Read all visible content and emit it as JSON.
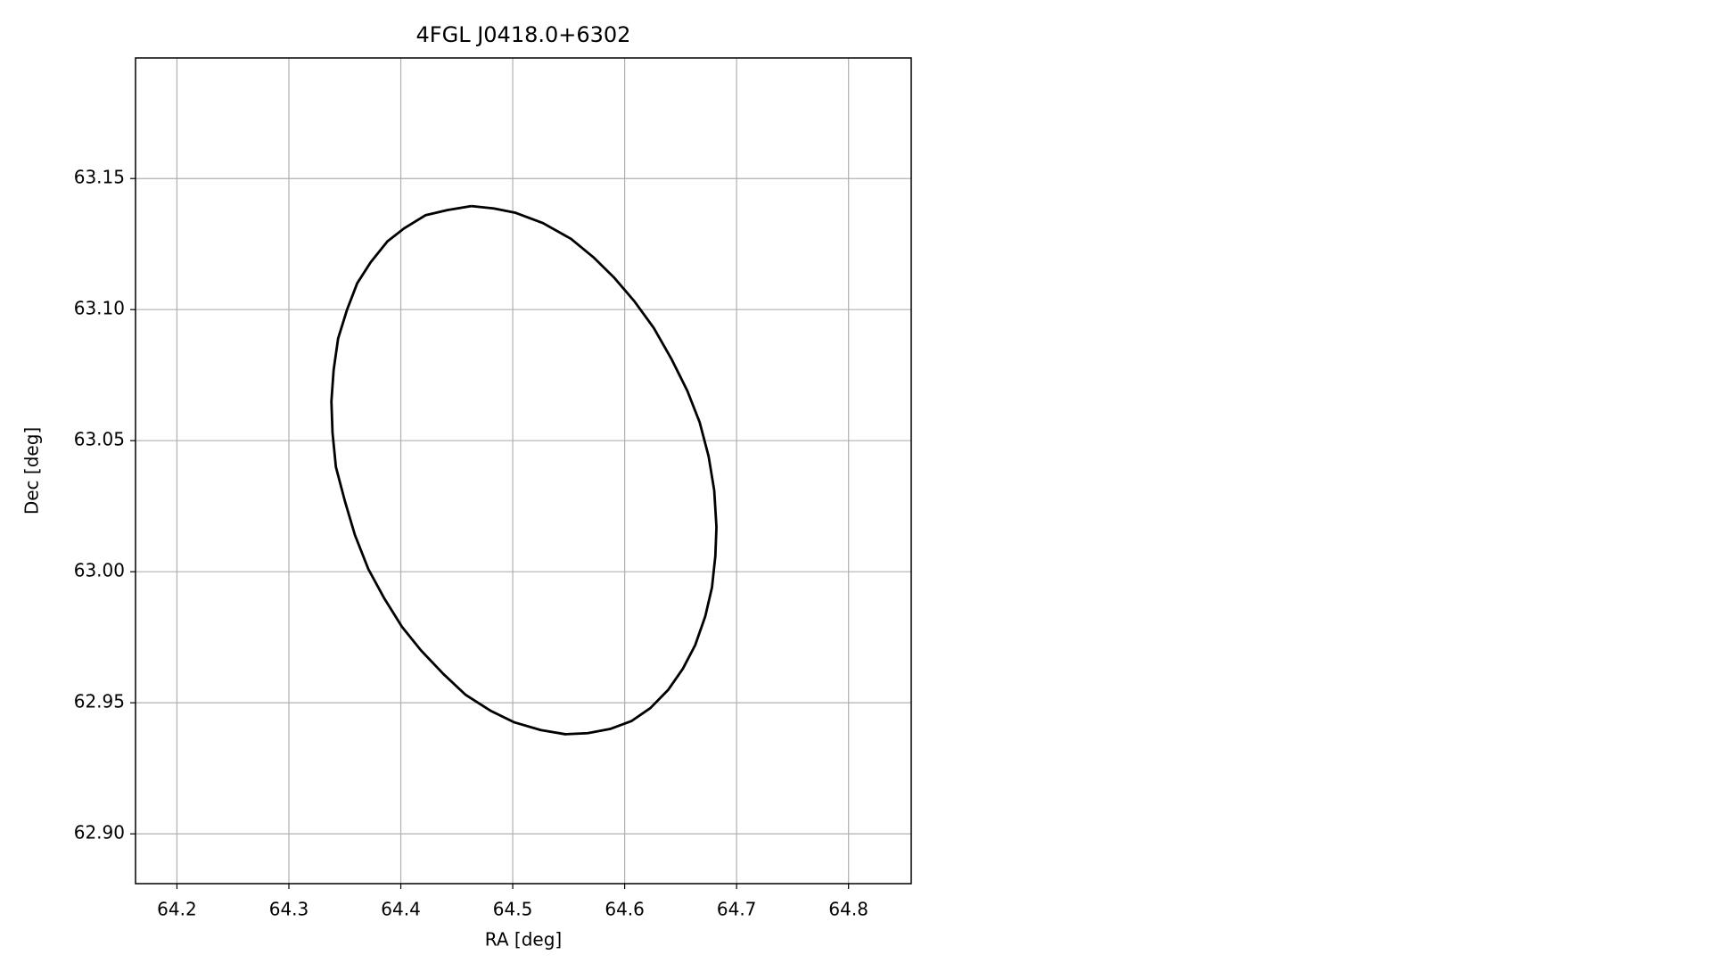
{
  "chart_data": {
    "type": "line",
    "title": "4FGL J0418.0+6302",
    "x_label": "RA [deg]",
    "y_label": "Dec [deg]",
    "x": [
      64.463,
      64.483,
      64.502,
      64.527,
      64.552,
      64.572,
      64.591,
      64.609,
      64.626,
      64.642,
      64.656,
      64.667,
      64.675,
      64.68,
      64.682,
      64.681,
      64.678,
      64.672,
      64.663,
      64.652,
      64.639,
      64.623,
      64.606,
      64.587,
      64.567,
      64.547,
      64.525,
      64.501,
      64.48,
      64.458,
      64.438,
      64.418,
      64.401,
      64.385,
      64.371,
      64.359,
      64.35,
      64.342,
      64.339,
      64.338,
      64.34,
      64.344,
      64.352,
      64.361,
      64.373,
      64.388,
      64.403,
      64.422,
      64.442,
      64.463
    ],
    "series": [
      {
        "color": "#000000",
        "values": [
          63.1395,
          63.1386,
          63.137,
          63.133,
          63.127,
          63.12,
          63.112,
          63.103,
          63.093,
          63.081,
          63.069,
          63.057,
          63.044,
          63.031,
          63.017,
          63.006,
          62.994,
          62.983,
          62.972,
          62.963,
          62.955,
          62.948,
          62.943,
          62.94,
          62.9384,
          62.938,
          62.9396,
          62.9426,
          62.947,
          62.953,
          62.961,
          62.97,
          62.979,
          62.99,
          63.001,
          63.014,
          63.027,
          63.04,
          63.053,
          63.065,
          63.077,
          63.089,
          63.1,
          63.11,
          63.118,
          63.126,
          63.131,
          63.136,
          63.138,
          63.1395
        ]
      }
    ],
    "xlim": [
      64.163,
      64.856
    ],
    "ylim": [
      62.881,
      63.196
    ],
    "xticks": [
      64.2,
      64.3,
      64.4,
      64.5,
      64.6,
      64.7,
      64.8
    ],
    "yticks": [
      {
        "value": 62.9,
        "label": "62.90"
      },
      62.95,
      {
        "value": 63.0,
        "label": "63.00"
      },
      63.05,
      {
        "value": 63.1,
        "label": "63.10"
      },
      63.15
    ],
    "grid": true
  }
}
